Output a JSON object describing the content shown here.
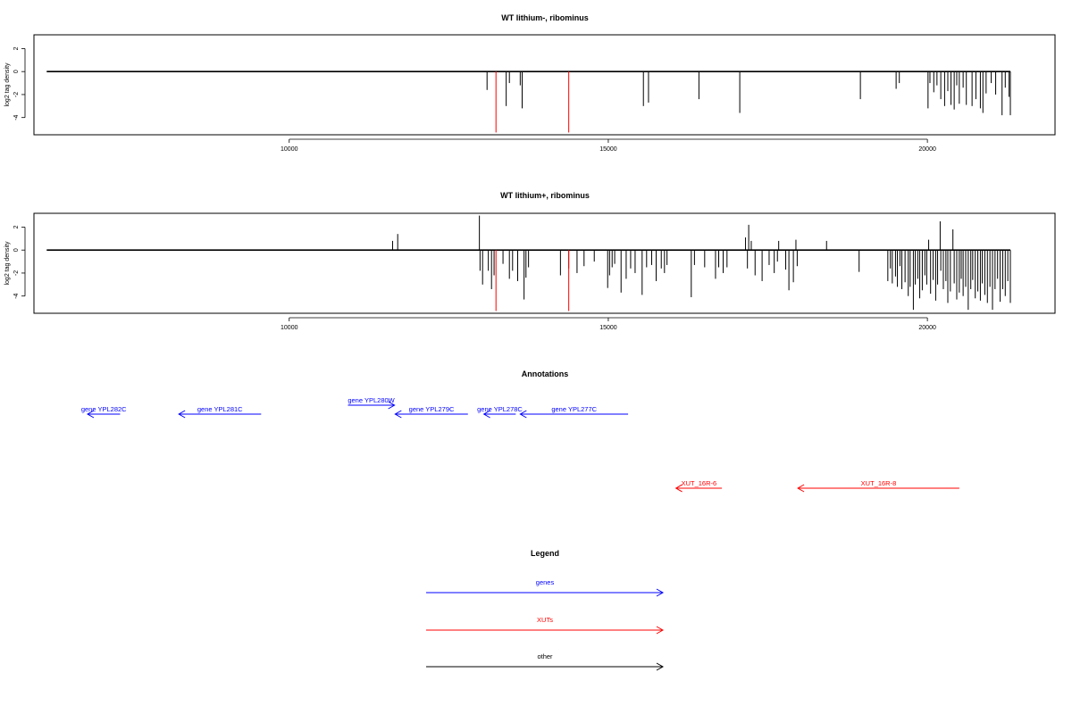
{
  "chart_data": [
    {
      "type": "bar",
      "title": "WT lithium-, ribominus",
      "ylabel": "log2 tag density",
      "xlabel": "",
      "xlim": [
        6000,
        22000
      ],
      "ylim": [
        -5.5,
        3.2
      ],
      "x_ticks": [
        10000,
        15000,
        20000
      ],
      "y_ticks": [
        2,
        0,
        -2,
        -4
      ],
      "baseline": {
        "x_start": 6200,
        "x_end": 21300,
        "y": 0
      },
      "highlight_color": "#ff0000",
      "bar_color": "#000000",
      "bars": [
        [
          13100,
          -1.6
        ],
        [
          13400,
          -3.0
        ],
        [
          13450,
          -1.0
        ],
        [
          13620,
          -1.2
        ],
        [
          13650,
          -3.2
        ],
        [
          15550,
          -3.0
        ],
        [
          15630,
          -2.7
        ],
        [
          16420,
          -2.4
        ],
        [
          17060,
          -3.6
        ],
        [
          18950,
          -2.4
        ],
        [
          19510,
          -1.5
        ],
        [
          19560,
          -1.0
        ],
        [
          20010,
          -3.2
        ],
        [
          20040,
          -1.0
        ],
        [
          20100,
          -1.8
        ],
        [
          20150,
          -1.2
        ],
        [
          20210,
          -2.4
        ],
        [
          20270,
          -3.0
        ],
        [
          20320,
          -1.7
        ],
        [
          20370,
          -2.9
        ],
        [
          20420,
          -3.3
        ],
        [
          20460,
          -1.2
        ],
        [
          20500,
          -2.8
        ],
        [
          20560,
          -1.4
        ],
        [
          20610,
          -2.9
        ],
        [
          20700,
          -3.0
        ],
        [
          20760,
          -2.4
        ],
        [
          20830,
          -3.2
        ],
        [
          20870,
          -3.6
        ],
        [
          20920,
          -1.9
        ],
        [
          21000,
          -1.0
        ],
        [
          21070,
          -2.0
        ],
        [
          21170,
          -3.8
        ],
        [
          21220,
          -1.4
        ],
        [
          21280,
          -2.2
        ],
        [
          21300,
          -3.8
        ]
      ],
      "highlight_bars": [
        [
          13240,
          -5.3
        ],
        [
          14380,
          -5.3
        ]
      ]
    },
    {
      "type": "bar",
      "title": "WT lithium+, ribominus",
      "ylabel": "log2 tag density",
      "xlabel": "",
      "xlim": [
        6000,
        22000
      ],
      "ylim": [
        -5.5,
        3.2
      ],
      "x_ticks": [
        10000,
        15000,
        20000
      ],
      "y_ticks": [
        2,
        0,
        -2,
        -4
      ],
      "baseline": {
        "x_start": 6200,
        "x_end": 21300,
        "y": 0
      },
      "highlight_color": "#ff0000",
      "bar_color": "#000000",
      "bars": [
        [
          11620,
          0.8
        ],
        [
          11700,
          1.4
        ],
        [
          12980,
          3.0
        ],
        [
          12990,
          -1.8
        ],
        [
          13030,
          -3.0
        ],
        [
          13120,
          -1.8
        ],
        [
          13170,
          -3.4
        ],
        [
          13210,
          -2.2
        ],
        [
          13350,
          -1.2
        ],
        [
          13450,
          -2.5
        ],
        [
          13500,
          -1.8
        ],
        [
          13580,
          -2.7
        ],
        [
          13680,
          -4.3
        ],
        [
          13710,
          -2.4
        ],
        [
          13750,
          -1.5
        ],
        [
          14250,
          -2.2
        ],
        [
          14380,
          -1.6
        ],
        [
          14510,
          -2.0
        ],
        [
          14620,
          -1.4
        ],
        [
          14780,
          -1.0
        ],
        [
          14990,
          -3.3
        ],
        [
          15020,
          -2.2
        ],
        [
          15060,
          -1.5
        ],
        [
          15100,
          -1.2
        ],
        [
          15200,
          -3.7
        ],
        [
          15280,
          -2.5
        ],
        [
          15350,
          -1.6
        ],
        [
          15420,
          -2.0
        ],
        [
          15530,
          -3.9
        ],
        [
          15600,
          -1.5
        ],
        [
          15680,
          -1.3
        ],
        [
          15750,
          -2.7
        ],
        [
          15830,
          -1.6
        ],
        [
          15880,
          -2.0
        ],
        [
          15920,
          -1.3
        ],
        [
          16300,
          -4.1
        ],
        [
          16350,
          -1.3
        ],
        [
          16510,
          -1.5
        ],
        [
          16680,
          -2.5
        ],
        [
          16730,
          -1.5
        ],
        [
          16800,
          -2.0
        ],
        [
          16860,
          -1.5
        ],
        [
          17150,
          1.1
        ],
        [
          17200,
          2.2
        ],
        [
          17240,
          0.8
        ],
        [
          17180,
          -1.6
        ],
        [
          17300,
          -2.2
        ],
        [
          17410,
          -2.7
        ],
        [
          17520,
          -1.3
        ],
        [
          17600,
          -2.0
        ],
        [
          17650,
          -1.0
        ],
        [
          17670,
          0.8
        ],
        [
          17780,
          -1.7
        ],
        [
          17830,
          -3.5
        ],
        [
          17900,
          -2.8
        ],
        [
          17940,
          0.9
        ],
        [
          17960,
          -1.4
        ],
        [
          18420,
          0.8
        ],
        [
          18930,
          -1.9
        ],
        [
          19380,
          -2.7
        ],
        [
          19420,
          -1.6
        ],
        [
          19450,
          -2.9
        ],
        [
          19500,
          -2.3
        ],
        [
          19530,
          -3.2
        ],
        [
          19570,
          -1.4
        ],
        [
          19600,
          -3.4
        ],
        [
          19650,
          -2.8
        ],
        [
          19700,
          -4.0
        ],
        [
          19730,
          -3.2
        ],
        [
          19780,
          -5.2
        ],
        [
          19810,
          -3.0
        ],
        [
          19850,
          -2.5
        ],
        [
          19880,
          -4.2
        ],
        [
          19920,
          -3.5
        ],
        [
          19960,
          -2.2
        ],
        [
          19990,
          -3.0
        ],
        [
          20020,
          0.9
        ],
        [
          20050,
          -3.8
        ],
        [
          20090,
          -2.6
        ],
        [
          20130,
          -4.4
        ],
        [
          20160,
          -3.0
        ],
        [
          20200,
          2.5
        ],
        [
          20210,
          -1.8
        ],
        [
          20250,
          -3.4
        ],
        [
          20290,
          -2.7
        ],
        [
          20320,
          -4.6
        ],
        [
          20360,
          -3.6
        ],
        [
          20400,
          1.8
        ],
        [
          20420,
          -2.9
        ],
        [
          20460,
          -4.3
        ],
        [
          20500,
          -3.7
        ],
        [
          20530,
          -2.5
        ],
        [
          20560,
          -4.0
        ],
        [
          20600,
          -3.2
        ],
        [
          20640,
          -5.2
        ],
        [
          20680,
          -3.4
        ],
        [
          20710,
          -2.6
        ],
        [
          20750,
          -4.2
        ],
        [
          20790,
          -3.6
        ],
        [
          20830,
          -4.4
        ],
        [
          20860,
          -2.9
        ],
        [
          20900,
          -3.9
        ],
        [
          20940,
          -4.6
        ],
        [
          20980,
          -3.2
        ],
        [
          21020,
          -5.2
        ],
        [
          21060,
          -3.4
        ],
        [
          21100,
          -2.5
        ],
        [
          21140,
          -4.5
        ],
        [
          21180,
          -3.4
        ],
        [
          21220,
          -4.0
        ],
        [
          21260,
          -2.7
        ],
        [
          21300,
          -4.6
        ]
      ],
      "highlight_bars": [
        [
          13240,
          -5.3
        ],
        [
          14380,
          -5.3
        ]
      ]
    }
  ],
  "annotations": {
    "title": "Annotations",
    "items": [
      {
        "label": "gene YPL282C",
        "color": "#0000ff",
        "x_start": 7350,
        "x_end": 6840,
        "row": 1
      },
      {
        "label": "gene YPL281C",
        "color": "#0000ff",
        "x_start": 9560,
        "x_end": 8270,
        "row": 1
      },
      {
        "label": "gene YPL280W",
        "color": "#0000ff",
        "x_start": 10920,
        "x_end": 11650,
        "row": 0
      },
      {
        "label": "gene YPL279C",
        "color": "#0000ff",
        "x_start": 12800,
        "x_end": 11660,
        "row": 1
      },
      {
        "label": "gene YPL278C",
        "color": "#0000ff",
        "x_start": 13550,
        "x_end": 13050,
        "row": 1
      },
      {
        "label": "gene YPL277C",
        "color": "#0000ff",
        "x_start": 15310,
        "x_end": 13620,
        "row": 1
      },
      {
        "label": "XUT_16R-6",
        "color": "#ff0000",
        "x_start": 16780,
        "x_end": 16060,
        "row": 2
      },
      {
        "label": "XUT_16R-8",
        "color": "#ff0000",
        "x_start": 20500,
        "x_end": 17970,
        "row": 2
      }
    ]
  },
  "legend": {
    "title": "Legend",
    "items": [
      {
        "label": "genes",
        "color": "#0000ff"
      },
      {
        "label": "XUTs",
        "color": "#ff0000"
      },
      {
        "label": "other",
        "color": "#000000"
      }
    ]
  }
}
